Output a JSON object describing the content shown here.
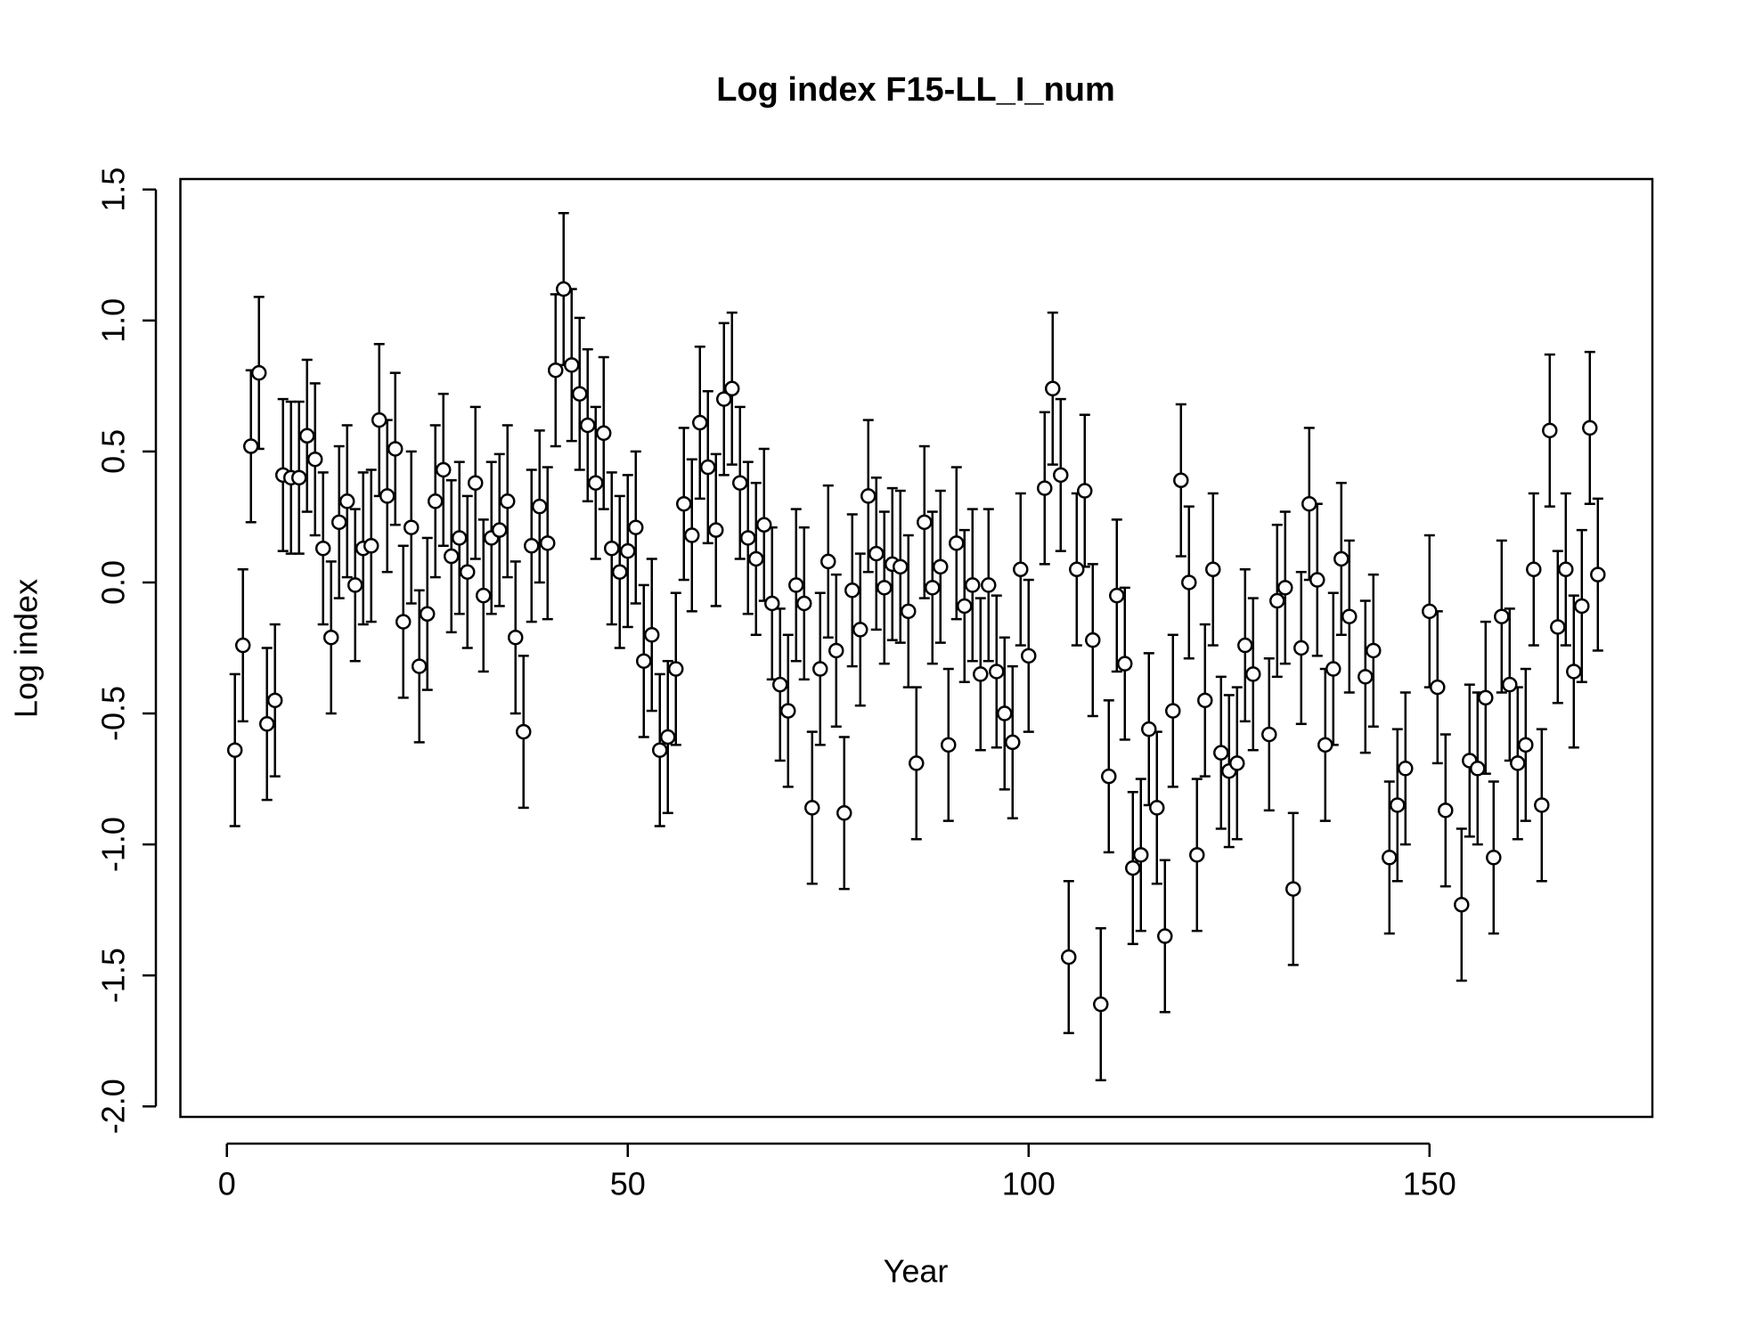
{
  "chart_data": {
    "type": "scatter",
    "title": "Log index F15-LL_I_num",
    "x_label": "Year",
    "y_label": "Log index",
    "color": "#000000",
    "error": 0.29,
    "xlim": [
      -5.8,
      177.8
    ],
    "ylim": [
      -2.04,
      1.54
    ],
    "xticks": [
      0,
      50,
      100,
      150
    ],
    "yticks": [
      1.5,
      {
        "value": 1.0,
        "label": "1.0"
      },
      0.5,
      {
        "value": 0.0,
        "label": "0.0"
      },
      -0.5,
      {
        "value": -1.0,
        "label": "-1.0"
      },
      -1.5,
      {
        "value": -2.0,
        "label": "-2.0"
      }
    ],
    "x": [
      1,
      2,
      3,
      4,
      5,
      6,
      7,
      8,
      9,
      10,
      11,
      12,
      13,
      14,
      15,
      16,
      17,
      18,
      19,
      20,
      21,
      22,
      23,
      24,
      25,
      26,
      27,
      28,
      29,
      30,
      31,
      32,
      33,
      34,
      35,
      36,
      37,
      38,
      39,
      40,
      41,
      42,
      43,
      44,
      45,
      46,
      47,
      48,
      49,
      50,
      51,
      52,
      53,
      54,
      55,
      56,
      57,
      58,
      59,
      60,
      61,
      62,
      63,
      64,
      65,
      66,
      67,
      68,
      69,
      70,
      71,
      72,
      73,
      74,
      75,
      76,
      77,
      78,
      79,
      80,
      81,
      82,
      83,
      84,
      85,
      86,
      87,
      88,
      89,
      90,
      91,
      92,
      93,
      94,
      95,
      96,
      97,
      98,
      99,
      100,
      102,
      103,
      104,
      105,
      106,
      107,
      108,
      109,
      110,
      111,
      112,
      113,
      114,
      115,
      116,
      117,
      118,
      119,
      120,
      121,
      122,
      123,
      124,
      125,
      126,
      127,
      128,
      130,
      131,
      132,
      133,
      134,
      135,
      136,
      137,
      138,
      139,
      140,
      142,
      143,
      145,
      146,
      147,
      150,
      151,
      152,
      154,
      155,
      156,
      157,
      158,
      159,
      160,
      161,
      162,
      163,
      164,
      165,
      166,
      167,
      168,
      169,
      170,
      171
    ],
    "values": [
      -0.64,
      -0.24,
      0.52,
      0.8,
      -0.54,
      -0.45,
      0.41,
      0.4,
      0.4,
      0.56,
      0.47,
      0.13,
      -0.21,
      0.23,
      0.31,
      -0.01,
      0.13,
      0.14,
      0.62,
      0.33,
      0.51,
      -0.15,
      0.21,
      -0.32,
      -0.12,
      0.31,
      0.43,
      0.1,
      0.17,
      0.04,
      0.38,
      -0.05,
      0.17,
      0.2,
      0.31,
      -0.21,
      -0.57,
      0.14,
      0.29,
      0.15,
      0.81,
      1.12,
      0.83,
      0.72,
      0.6,
      0.38,
      0.57,
      0.13,
      0.04,
      0.12,
      0.21,
      -0.3,
      -0.2,
      -0.64,
      -0.59,
      -0.33,
      0.3,
      0.18,
      0.61,
      0.44,
      0.2,
      0.7,
      0.74,
      0.38,
      0.17,
      0.09,
      0.22,
      -0.08,
      -0.39,
      -0.49,
      -0.01,
      -0.08,
      -0.86,
      -0.33,
      0.08,
      -0.26,
      -0.88,
      -0.03,
      -0.18,
      0.33,
      0.11,
      -0.02,
      0.07,
      0.06,
      -0.11,
      -0.69,
      0.23,
      -0.02,
      0.06,
      -0.62,
      0.15,
      -0.09,
      -0.01,
      -0.35,
      -0.01,
      -0.34,
      -0.5,
      -0.61,
      0.05,
      -0.28,
      0.36,
      0.74,
      0.41,
      -1.43,
      0.05,
      0.35,
      -0.22,
      -1.61,
      -0.74,
      -0.05,
      -0.31,
      -1.09,
      -1.04,
      -0.56,
      -0.86,
      -1.35,
      -0.49,
      0.39,
      0.0,
      -1.04,
      -0.45,
      0.05,
      -0.65,
      -0.72,
      -0.69,
      -0.24,
      -0.35,
      -0.58,
      -0.07,
      -0.02,
      -1.17,
      -0.25,
      0.3,
      0.01,
      -0.62,
      -0.33,
      0.09,
      -0.13,
      -0.36,
      -0.26,
      -1.05,
      -0.85,
      -0.71,
      -0.11,
      -0.4,
      -0.87,
      -1.23,
      -0.68,
      -0.71,
      -0.44,
      -1.05,
      -0.13,
      -0.39,
      -0.69,
      -0.62,
      0.05,
      -0.85,
      0.58,
      -0.17,
      0.05,
      -0.34,
      -0.09,
      0.59,
      0.03
    ]
  }
}
